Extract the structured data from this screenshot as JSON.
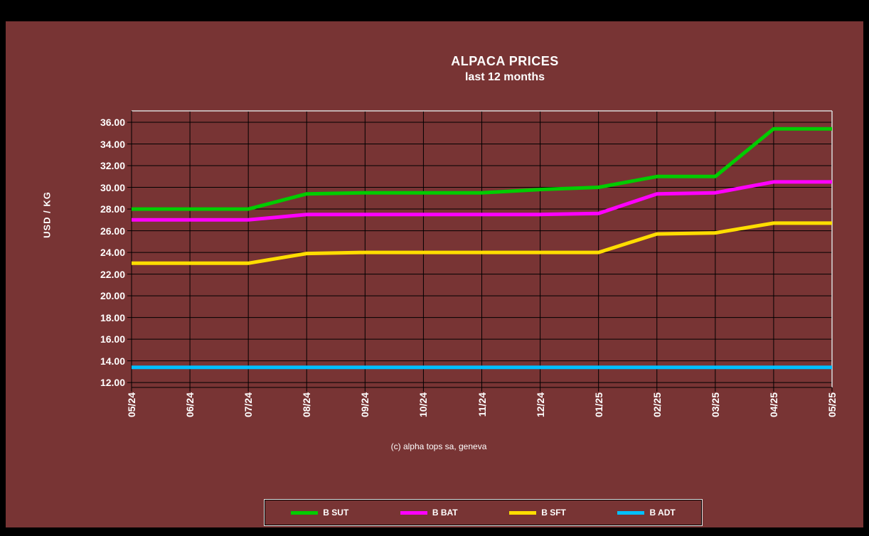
{
  "window": {
    "outer_bg": "#000000",
    "panel_bg": "#783434",
    "text_color": "#ffffff"
  },
  "title": {
    "line1": "ALPACA PRICES",
    "line2": "last 12 months"
  },
  "caption": "(c) alpha tops sa, geneva",
  "chart_data": {
    "type": "line",
    "title": "ALPACA PRICES",
    "subtitle": "last 12 months",
    "ylabel": "USD / KG",
    "xlabel": "",
    "categories": [
      "05/24",
      "06/24",
      "07/24",
      "08/24",
      "09/24",
      "10/24",
      "11/24",
      "12/24",
      "01/25",
      "02/25",
      "03/25",
      "04/25",
      "05/25"
    ],
    "y_tick_values": [
      12,
      14,
      16,
      18,
      20,
      22,
      24,
      26,
      28,
      30,
      32,
      34,
      36
    ],
    "y_tick_labels": [
      "12.00",
      "14.00",
      "16.00",
      "18.00",
      "20.00",
      "22.00",
      "24.00",
      "26.00",
      "28.00",
      "30.00",
      "32.00",
      "34.00",
      "36.00"
    ],
    "ylim": [
      11.55,
      37.05
    ],
    "grid": true,
    "grid_color": "#000000",
    "frame_highlight_color": "#d9d9d9",
    "legend_position": "bottom",
    "series": [
      {
        "name": "B SUT",
        "color": "#00cc00",
        "values": [
          28.0,
          28.0,
          28.0,
          29.4,
          29.5,
          29.5,
          29.5,
          29.8,
          30.0,
          31.0,
          31.0,
          35.4,
          35.4
        ]
      },
      {
        "name": "B BAT",
        "color": "#ff00ff",
        "values": [
          27.0,
          27.0,
          27.0,
          27.5,
          27.5,
          27.5,
          27.5,
          27.5,
          27.6,
          29.4,
          29.5,
          30.5,
          30.5
        ]
      },
      {
        "name": "B SFT",
        "color": "#ffdd00",
        "values": [
          23.0,
          23.0,
          23.0,
          23.9,
          24.0,
          24.0,
          24.0,
          24.0,
          24.0,
          25.7,
          25.8,
          26.7,
          26.7
        ]
      },
      {
        "name": "B ADT",
        "color": "#00bfff",
        "values": [
          13.4,
          13.4,
          13.4,
          13.4,
          13.4,
          13.4,
          13.4,
          13.4,
          13.4,
          13.4,
          13.4,
          13.4,
          13.4
        ]
      }
    ]
  }
}
